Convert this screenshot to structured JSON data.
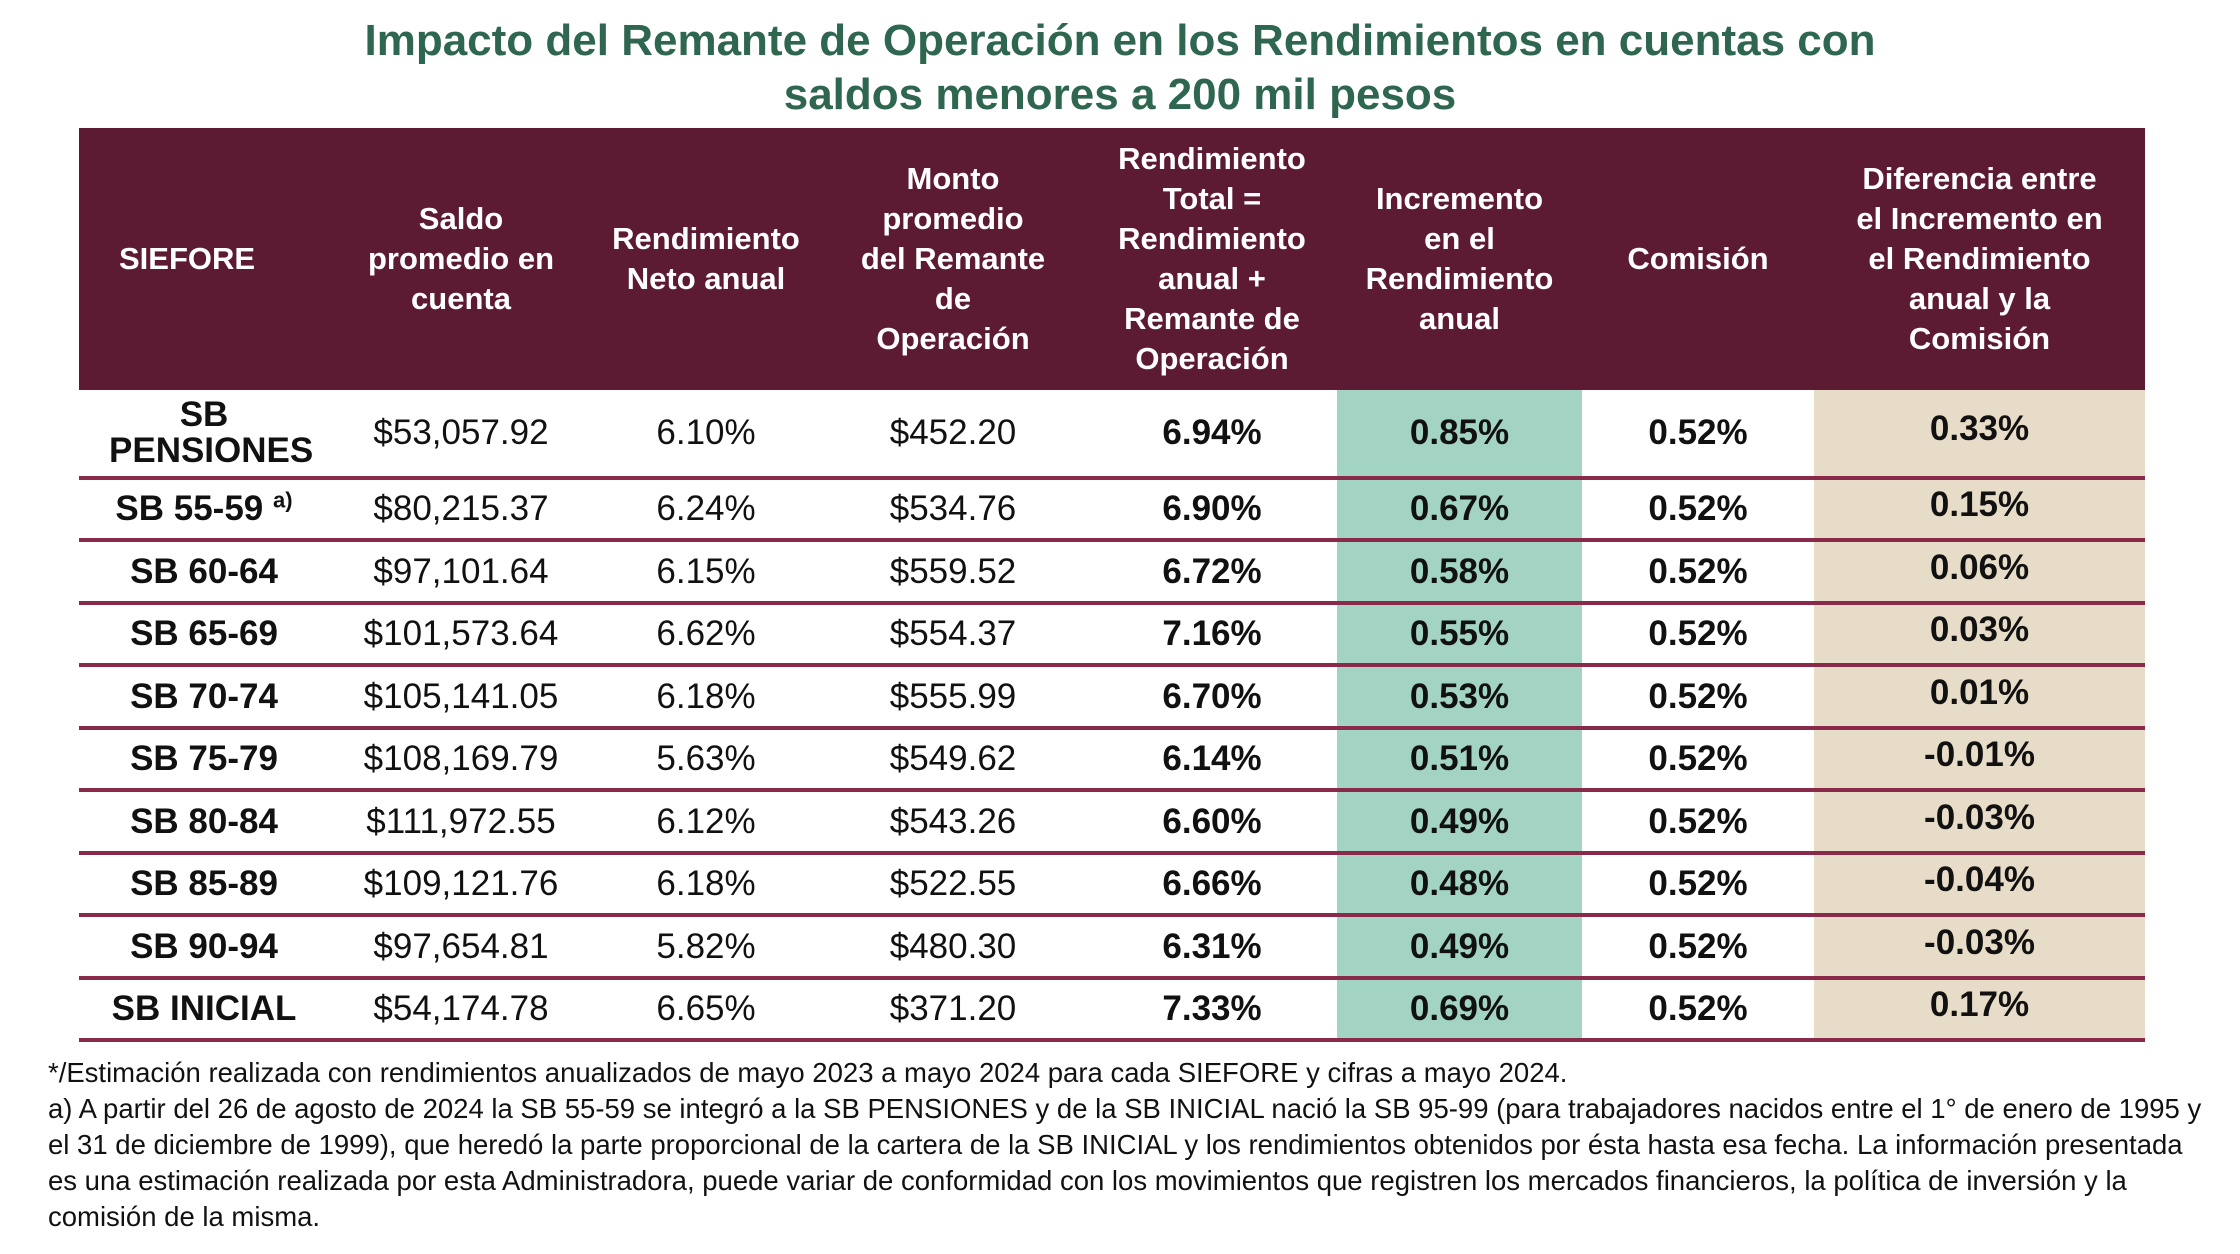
{
  "title": {
    "line1": "Impacto del Remante de Operación en los Rendimientos en cuentas con",
    "line2": "saldos menores a 200 mil pesos"
  },
  "table": {
    "headers": [
      "SIEFORE",
      "Saldo promedio en cuenta",
      "Rendimiento Neto anual",
      "Monto promedio del Remante de Operación",
      "Rendimiento Total = Rendimiento anual + Remante de Operación",
      "Incremento en el Rendimiento anual",
      "Comisión",
      "Diferencia entre el Incremento en el Rendimiento anual y la Comisión"
    ],
    "header_lines": [
      [
        "SIEFORE"
      ],
      [
        "Saldo",
        "promedio en",
        "cuenta"
      ],
      [
        "Rendimiento",
        "Neto anual"
      ],
      [
        "Monto",
        "promedio",
        "del Remante",
        "de",
        "Operación"
      ],
      [
        "Rendimiento",
        "Total =",
        "Rendimiento",
        "anual +",
        "Remante de",
        "Operación"
      ],
      [
        "Incremento",
        "en el",
        "Rendimiento",
        "anual"
      ],
      [
        "Comisión"
      ],
      [
        "Diferencia entre",
        "el Incremento en",
        "el Rendimiento",
        "anual y la",
        "Comisión"
      ]
    ],
    "rows": [
      {
        "siefore": "SB PENSIONES",
        "note": "",
        "saldo": "$53,057.92",
        "rend_neto": "6.10%",
        "monto": "$452.20",
        "rend_total": "6.94%",
        "incremento": "0.85%",
        "comision": "0.52%",
        "diferencia": "0.33%"
      },
      {
        "siefore": "SB 55-59",
        "note": "a)",
        "saldo": "$80,215.37",
        "rend_neto": "6.24%",
        "monto": "$534.76",
        "rend_total": "6.90%",
        "incremento": "0.67%",
        "comision": "0.52%",
        "diferencia": "0.15%"
      },
      {
        "siefore": "SB 60-64",
        "note": "",
        "saldo": "$97,101.64",
        "rend_neto": "6.15%",
        "monto": "$559.52",
        "rend_total": "6.72%",
        "incremento": "0.58%",
        "comision": "0.52%",
        "diferencia": "0.06%"
      },
      {
        "siefore": "SB 65-69",
        "note": "",
        "saldo": "$101,573.64",
        "rend_neto": "6.62%",
        "monto": "$554.37",
        "rend_total": "7.16%",
        "incremento": "0.55%",
        "comision": "0.52%",
        "diferencia": "0.03%"
      },
      {
        "siefore": "SB 70-74",
        "note": "",
        "saldo": "$105,141.05",
        "rend_neto": "6.18%",
        "monto": "$555.99",
        "rend_total": "6.70%",
        "incremento": "0.53%",
        "comision": "0.52%",
        "diferencia": "0.01%"
      },
      {
        "siefore": "SB 75-79",
        "note": "",
        "saldo": "$108,169.79",
        "rend_neto": "5.63%",
        "monto": "$549.62",
        "rend_total": "6.14%",
        "incremento": "0.51%",
        "comision": "0.52%",
        "diferencia": "-0.01%"
      },
      {
        "siefore": "SB 80-84",
        "note": "",
        "saldo": "$111,972.55",
        "rend_neto": "6.12%",
        "monto": "$543.26",
        "rend_total": "6.60%",
        "incremento": "0.49%",
        "comision": "0.52%",
        "diferencia": "-0.03%"
      },
      {
        "siefore": "SB 85-89",
        "note": "",
        "saldo": "$109,121.76",
        "rend_neto": "6.18%",
        "monto": "$522.55",
        "rend_total": "6.66%",
        "incremento": "0.48%",
        "comision": "0.52%",
        "diferencia": "-0.04%"
      },
      {
        "siefore": "SB 90-94",
        "note": "",
        "saldo": "$97,654.81",
        "rend_neto": "5.82%",
        "monto": "$480.30",
        "rend_total": "6.31%",
        "incremento": "0.49%",
        "comision": "0.52%",
        "diferencia": "-0.03%"
      },
      {
        "siefore": "SB INICIAL",
        "note": "",
        "saldo": "$54,174.78",
        "rend_neto": "6.65%",
        "monto": "$371.20",
        "rend_total": "7.33%",
        "incremento": "0.69%",
        "comision": "0.52%",
        "diferencia": "0.17%"
      }
    ]
  },
  "notes": {
    "line1": "*/Estimación realizada con rendimientos anualizados de mayo 2023 a mayo 2024 para cada SIEFORE y cifras a mayo 2024.",
    "line2": "a) A partir del 26 de agosto de 2024 la SB 55-59 se integró a la SB PENSIONES y de la SB INICIAL nació la SB 95-99 (para trabajadores nacidos entre el 1° de enero de 1995 y el 31 de diciembre de 1999), que heredó la parte proporcional de la cartera de la SB INICIAL y los rendimientos obtenidos por ésta hasta esa fecha. La información presentada es una estimación realizada por esta Administradora, puede variar de conformidad con los movimientos que registren los mercados financieros, la política de inversión y la comisión de la misma."
  },
  "colors": {
    "title": "#2e6650",
    "header_bg": "#5c1a33",
    "row_rule": "#8a2a4a",
    "incremento_bg": "#a3d3c2",
    "diferencia_bg": "#e7dcc8"
  }
}
